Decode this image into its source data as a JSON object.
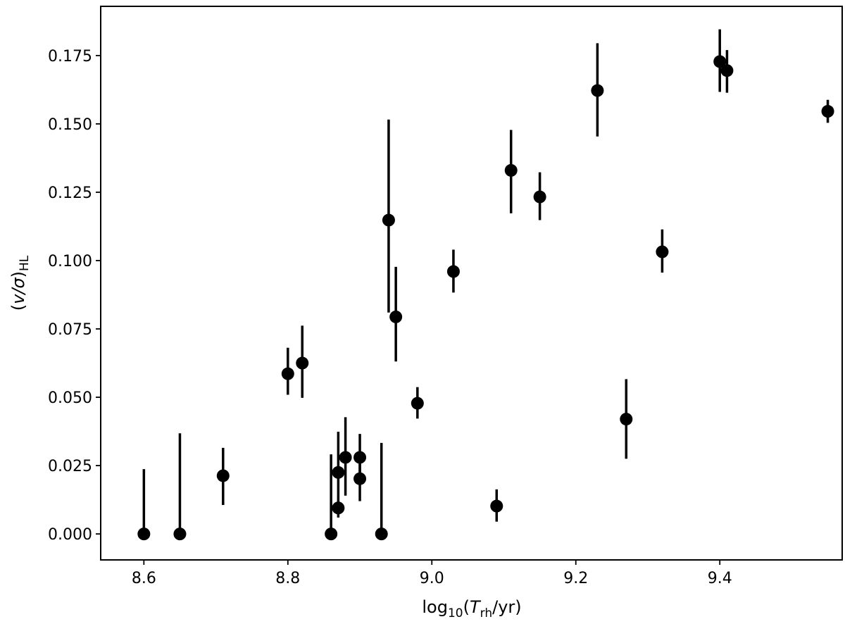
{
  "chart_data": {
    "type": "scatter",
    "title": "",
    "xlabel_parts": {
      "prefix": "log",
      "sub": "10",
      "open": "(",
      "var": "T",
      "var_sub": "rh",
      "suffix": "/yr)"
    },
    "ylabel_parts": {
      "open": "(",
      "var": "v/σ",
      "close": ")",
      "sub": "HL"
    },
    "xlim": [
      8.54,
      9.57
    ],
    "ylim": [
      -0.0095,
      0.193
    ],
    "xticks": [
      8.6,
      8.8,
      9.0,
      9.2,
      9.4
    ],
    "xtick_labels": [
      "8.6",
      "8.8",
      "9.0",
      "9.2",
      "9.4"
    ],
    "yticks": [
      0.0,
      0.025,
      0.05,
      0.075,
      0.1,
      0.125,
      0.15,
      0.175
    ],
    "ytick_labels": [
      "0.000",
      "0.025",
      "0.050",
      "0.075",
      "0.100",
      "0.125",
      "0.150",
      "0.175"
    ],
    "grid": false,
    "marker_color": "#000000",
    "points": [
      {
        "x": 8.6,
        "y": 0.0,
        "ylo": 0.0,
        "yhi": 0.0237
      },
      {
        "x": 8.65,
        "y": 0.0,
        "ylo": 0.0,
        "yhi": 0.0368
      },
      {
        "x": 8.71,
        "y": 0.0213,
        "ylo": 0.0106,
        "yhi": 0.0315
      },
      {
        "x": 8.8,
        "y": 0.0586,
        "ylo": 0.0509,
        "yhi": 0.0681
      },
      {
        "x": 8.82,
        "y": 0.0625,
        "ylo": 0.0498,
        "yhi": 0.0762
      },
      {
        "x": 8.86,
        "y": 0.0,
        "ylo": 0.0,
        "yhi": 0.0291
      },
      {
        "x": 8.87,
        "y": 0.0225,
        "ylo": 0.0072,
        "yhi": 0.0374
      },
      {
        "x": 8.87,
        "y": 0.0095,
        "ylo": 0.006,
        "yhi": 0.012
      },
      {
        "x": 8.88,
        "y": 0.028,
        "ylo": 0.014,
        "yhi": 0.0427
      },
      {
        "x": 8.9,
        "y": 0.028,
        "ylo": 0.02,
        "yhi": 0.0366
      },
      {
        "x": 8.9,
        "y": 0.0202,
        "ylo": 0.012,
        "yhi": 0.028
      },
      {
        "x": 8.93,
        "y": 0.0,
        "ylo": 0.0,
        "yhi": 0.0333
      },
      {
        "x": 8.94,
        "y": 0.1148,
        "ylo": 0.081,
        "yhi": 0.1516
      },
      {
        "x": 8.95,
        "y": 0.0794,
        "ylo": 0.0631,
        "yhi": 0.0977
      },
      {
        "x": 8.98,
        "y": 0.0478,
        "ylo": 0.0422,
        "yhi": 0.0537
      },
      {
        "x": 9.03,
        "y": 0.096,
        "ylo": 0.0883,
        "yhi": 0.104
      },
      {
        "x": 9.09,
        "y": 0.0102,
        "ylo": 0.0045,
        "yhi": 0.0163
      },
      {
        "x": 9.11,
        "y": 0.133,
        "ylo": 0.1173,
        "yhi": 0.1478
      },
      {
        "x": 9.15,
        "y": 0.1233,
        "ylo": 0.1148,
        "yhi": 0.1323
      },
      {
        "x": 9.23,
        "y": 0.1622,
        "ylo": 0.1454,
        "yhi": 0.1795
      },
      {
        "x": 9.27,
        "y": 0.042,
        "ylo": 0.0275,
        "yhi": 0.0566
      },
      {
        "x": 9.32,
        "y": 0.1032,
        "ylo": 0.0956,
        "yhi": 0.1114
      },
      {
        "x": 9.4,
        "y": 0.1728,
        "ylo": 0.1617,
        "yhi": 0.1846
      },
      {
        "x": 9.41,
        "y": 0.1695,
        "ylo": 0.1614,
        "yhi": 0.177
      },
      {
        "x": 9.55,
        "y": 0.1546,
        "ylo": 0.1504,
        "yhi": 0.1588
      }
    ]
  }
}
